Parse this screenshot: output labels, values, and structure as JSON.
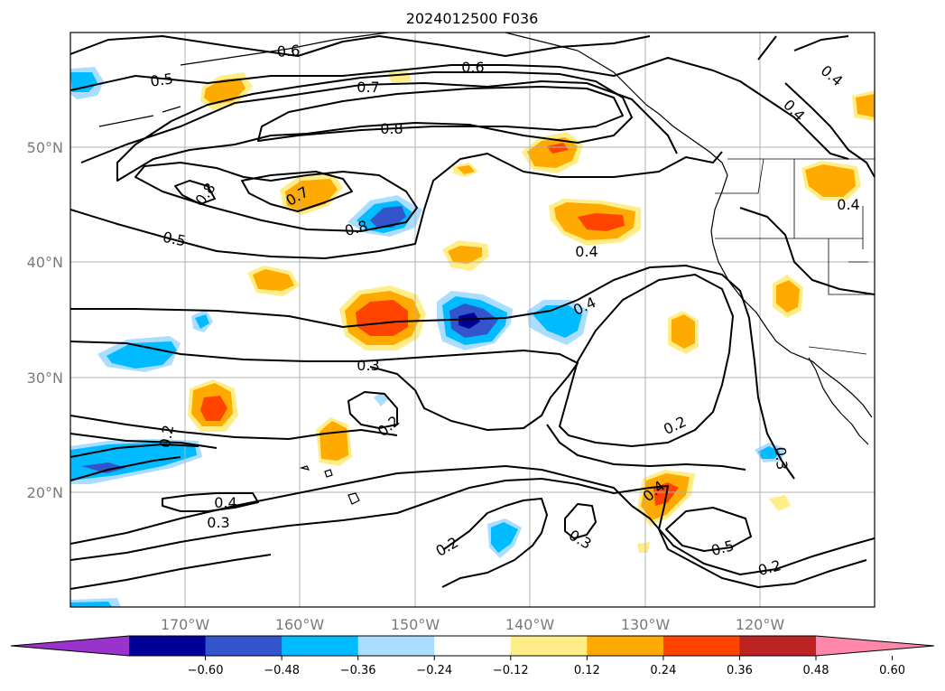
{
  "map": {
    "title": "2024012500 F036",
    "lat_labels": [
      "50°N",
      "40°N",
      "30°N",
      "20°N"
    ],
    "lon_labels": [
      "170°W",
      "160°W",
      "150°W",
      "140°W",
      "130°W",
      "120°W"
    ],
    "colorbar": {
      "ticks": [
        "−0.60",
        "−0.48",
        "−0.36",
        "−0.24",
        "−0.12",
        "0.12",
        "0.24",
        "0.36",
        "0.48",
        "0.60"
      ],
      "colors": [
        "#9933cc",
        "#000099",
        "#3355cc",
        "#00bbff",
        "#aaddff",
        "#ffffff",
        "#ffee88",
        "#ffaa00",
        "#ff4400",
        "#bb2222",
        "#ff88aa"
      ]
    },
    "contour_labels": [
      "0.6",
      "0.6",
      "0.5",
      "0.7",
      "0.8",
      "0.4",
      "0.4",
      "0.8",
      "0.7",
      "0.8",
      "0.4",
      "0.5",
      "0.4",
      "0.4",
      "0.3",
      "0.2",
      "0.2",
      "0.2",
      "0.4",
      "0.3",
      "0.3",
      "0.4",
      "0.2",
      "0.5",
      "0.3",
      "0.2"
    ]
  }
}
